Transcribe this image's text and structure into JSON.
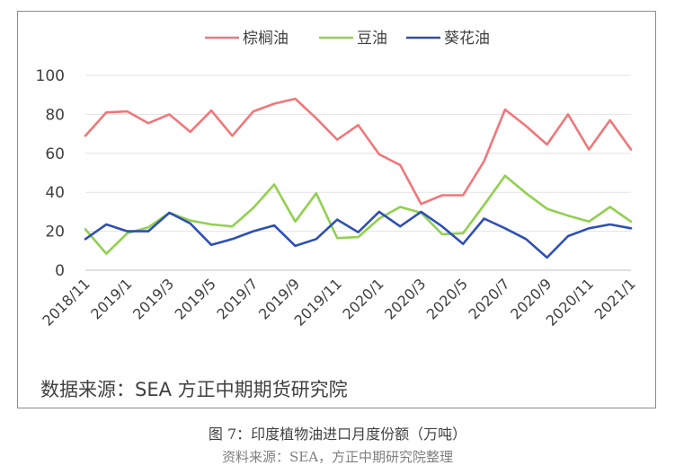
{
  "chart_data": {
    "type": "line",
    "series": [
      {
        "name": "棕榈油",
        "color": "#f0777a",
        "values": [
          69,
          81,
          81.5,
          75.5,
          80,
          71,
          82,
          69,
          81.5,
          85.5,
          88,
          78,
          67,
          74.5,
          59.5,
          54,
          34,
          38.5,
          38.5,
          56,
          82.5,
          74,
          64.5,
          80,
          62,
          77,
          62
        ]
      },
      {
        "name": "豆油",
        "color": "#92d050",
        "values": [
          21,
          8.5,
          19,
          22,
          29.5,
          25.5,
          23.5,
          22.5,
          32,
          44,
          25,
          39.5,
          16.5,
          17,
          26.5,
          32.5,
          29.5,
          18.5,
          19,
          33.5,
          48.5,
          39.5,
          31.5,
          28,
          25,
          32.5,
          25
        ]
      },
      {
        "name": "葵花油",
        "color": "#2e4fb5",
        "values": [
          16,
          23.5,
          20,
          20,
          29.5,
          24,
          13,
          16,
          20,
          23,
          12.5,
          16,
          26,
          19.5,
          30,
          22.5,
          30,
          22.5,
          13.5,
          26.5,
          21.5,
          16,
          6.5,
          17.5,
          21.5,
          23.5,
          21.5
        ]
      }
    ],
    "x_tick_labels": [
      "2018/11",
      "2019/1",
      "2019/3",
      "2019/5",
      "2019/7",
      "2019/9",
      "2019/11",
      "2020/1",
      "2020/3",
      "2020/5",
      "2020/7",
      "2020/9",
      "2020/11",
      "2021/1"
    ],
    "y_ticks": [
      "0",
      "20",
      "40",
      "60",
      "80",
      "100"
    ],
    "ylim": [
      0,
      100
    ],
    "grid": true,
    "legend_position": "top",
    "source_note": "数据来源：SEA 方正中期期货研究院"
  },
  "caption": {
    "title": "图 7：印度植物油进口月度份额（万吨）",
    "source": "资料来源：SEA，方正中期研究院整理"
  }
}
